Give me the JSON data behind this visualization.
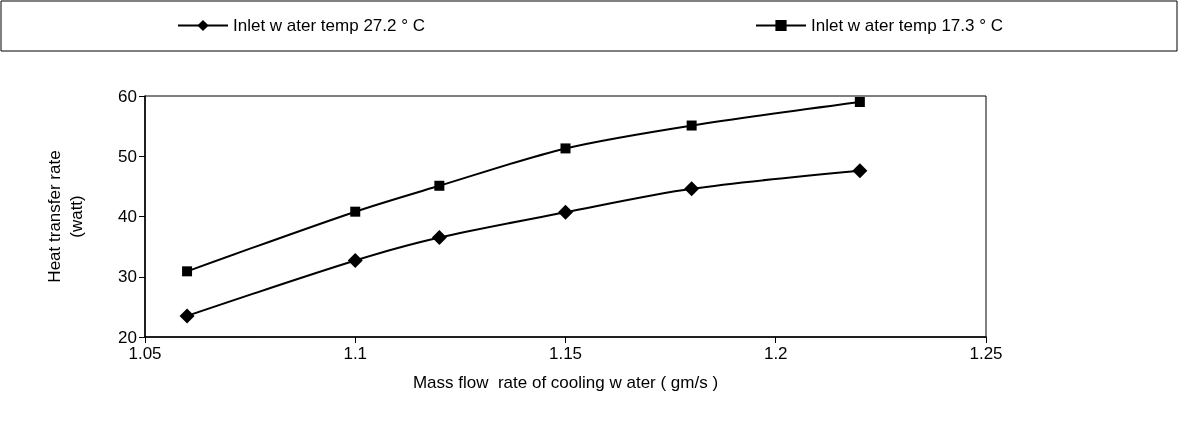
{
  "chart_data": {
    "type": "line",
    "xlabel": "Mass flow  rate of cooling w ater ( gm/s )",
    "ylabel": "Heat transfer rate\n(watt)",
    "x": [
      1.06,
      1.1,
      1.12,
      1.15,
      1.18,
      1.22
    ],
    "series": [
      {
        "name": "Inlet w ater temp 27.2 ° C",
        "color": "#000000",
        "marker": "diamond",
        "values": [
          23.5,
          32.7,
          36.5,
          40.7,
          44.6,
          47.6
        ]
      },
      {
        "name": "Inlet w ater temp 17.3 ° C",
        "color": "#000000",
        "marker": "square",
        "values": [
          30.9,
          40.8,
          45.1,
          51.3,
          55.1,
          59.0
        ]
      }
    ],
    "xlim": [
      1.05,
      1.25
    ],
    "xticks": [
      1.05,
      1.1,
      1.15,
      1.2,
      1.25
    ],
    "ylim": [
      20,
      60
    ],
    "yticks": [
      20,
      30,
      40,
      50,
      60
    ],
    "grid": false,
    "legend": "top",
    "line_style": "solid"
  }
}
